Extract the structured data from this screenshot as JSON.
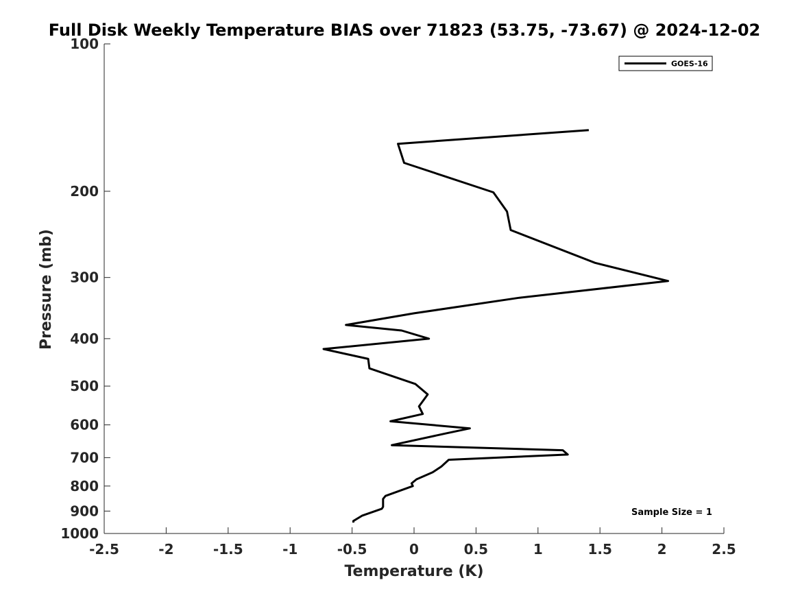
{
  "chart_data": {
    "type": "line",
    "title": "Full Disk Weekly Temperature BIAS over 71823 (53.75, -73.67) @ 2024-12-02",
    "xlabel": "Temperature (K)",
    "ylabel": "Pressure (mb)",
    "xlim": [
      -2.5,
      2.5
    ],
    "ylim": [
      100,
      1000
    ],
    "yscale": "log",
    "y_reversed": true,
    "grid": false,
    "x_ticks": [
      -2.5,
      -2,
      -1.5,
      -1,
      -0.5,
      0,
      0.5,
      1,
      1.5,
      2,
      2.5
    ],
    "x_tick_labels": [
      "-2.5",
      "-2",
      "-1.5",
      "-1",
      "-0.5",
      "0",
      "0.5",
      "1",
      "1.5",
      "2",
      "2.5"
    ],
    "y_ticks": [
      100,
      200,
      300,
      400,
      500,
      600,
      700,
      800,
      900,
      1000
    ],
    "y_tick_labels": [
      "100",
      "200",
      "300",
      "400",
      "500",
      "600",
      "700",
      "800",
      "900",
      "1000"
    ],
    "legend": {
      "position": "top-right",
      "entries": [
        "GOES-16"
      ]
    },
    "annotation": "Sample Size = 1",
    "series": [
      {
        "name": "GOES-16",
        "color": "#000000",
        "x": [
          1.41,
          -0.13,
          -0.08,
          0.64,
          0.75,
          0.78,
          1.46,
          2.05,
          0.85,
          0.0,
          -0.55,
          -0.1,
          0.12,
          -0.73,
          -0.37,
          -0.36,
          0.01,
          0.11,
          0.04,
          0.07,
          -0.19,
          0.45,
          0.25,
          -0.18,
          1.2,
          1.24,
          0.28,
          0.22,
          0.15,
          0.02,
          -0.02,
          -0.01,
          -0.23,
          -0.25,
          -0.25,
          -0.26,
          -0.42,
          -0.49,
          -0.49
        ],
        "y": [
          150,
          160,
          175,
          201,
          220,
          240,
          280,
          305,
          330,
          355,
          375,
          385,
          400,
          420,
          440,
          460,
          495,
          520,
          550,
          570,
          590,
          610,
          625,
          660,
          676,
          690,
          707,
          730,
          750,
          775,
          790,
          800,
          838,
          850,
          882,
          890,
          920,
          943,
          950
        ]
      }
    ]
  }
}
